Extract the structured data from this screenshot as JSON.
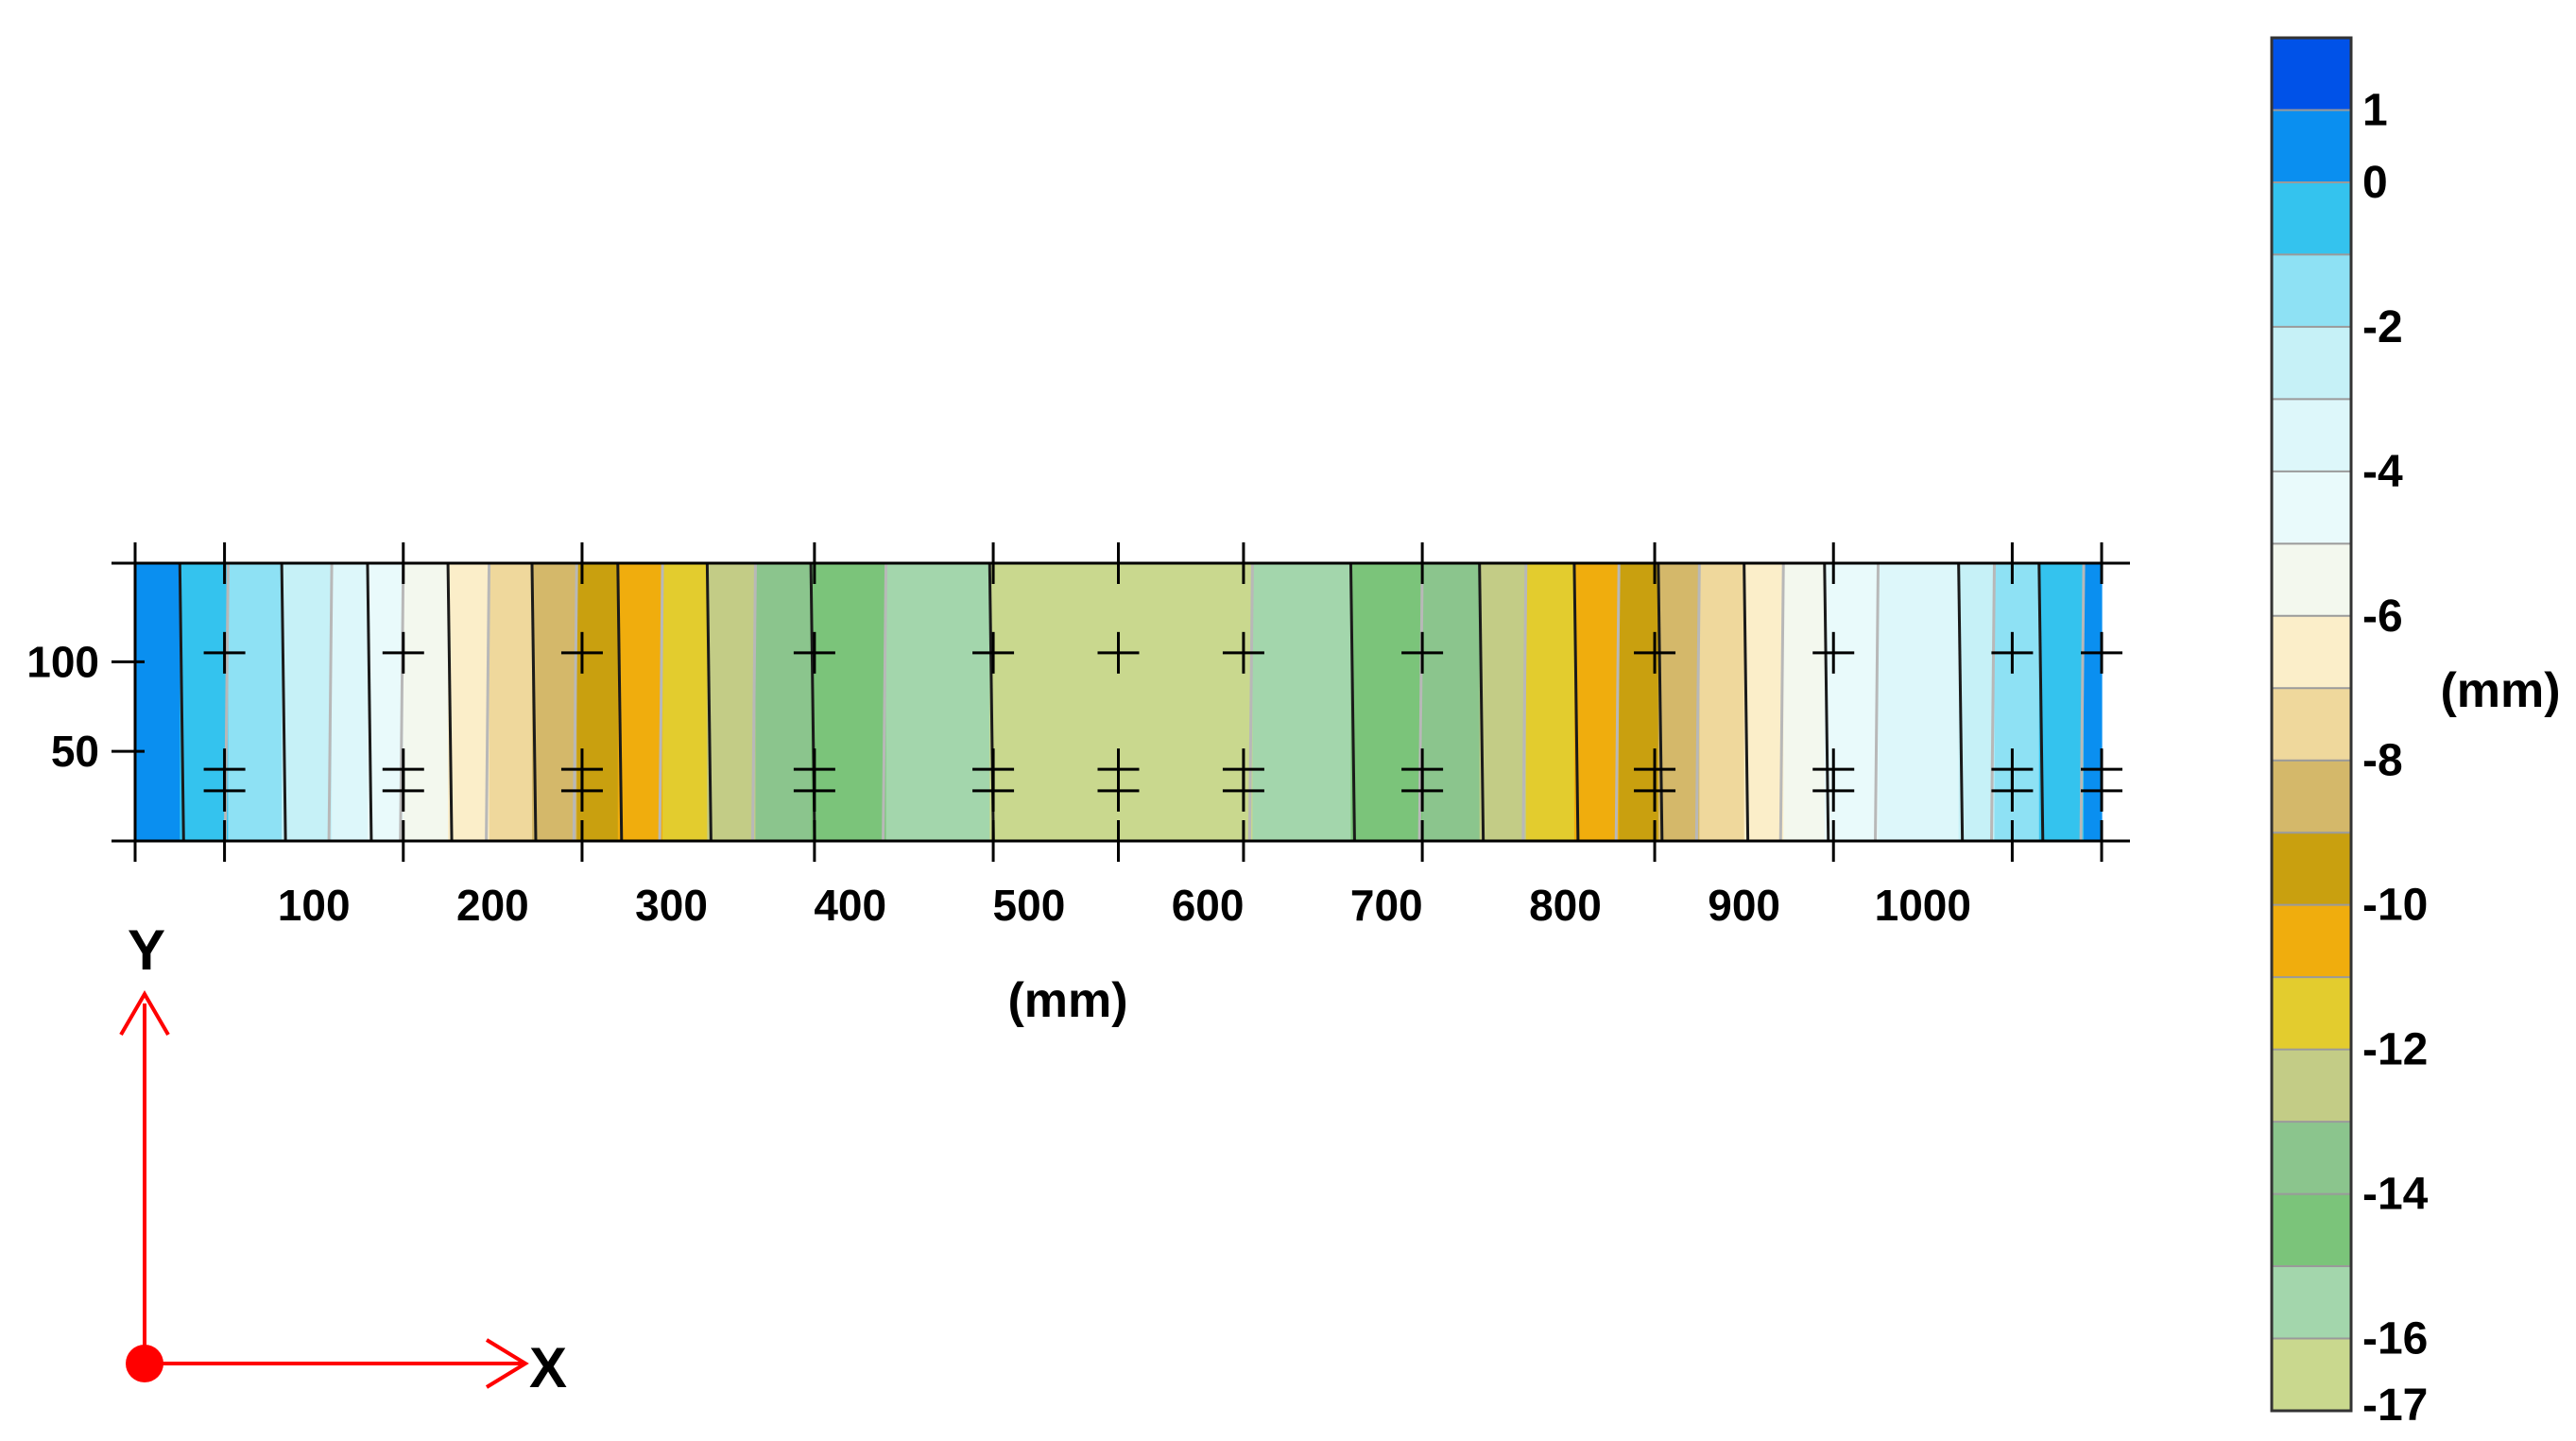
{
  "chart_data": {
    "type": "heatmap",
    "subtype": "filled-contour",
    "xlabel": "(mm)",
    "xlim": [
      0,
      1100
    ],
    "ylim": [
      0,
      155
    ],
    "x_ticks": [
      100,
      200,
      300,
      400,
      500,
      600,
      700,
      800,
      900,
      1000
    ],
    "y_ticks": [
      50,
      100
    ],
    "x_tick_labels": [
      "100",
      "200",
      "300",
      "400",
      "500",
      "600",
      "700",
      "800",
      "900",
      "1000"
    ],
    "y_tick_labels": [
      "50",
      "100"
    ],
    "colorbar": {
      "unit_label": "(mm)",
      "levels": [
        2,
        1,
        0,
        -1,
        -2,
        -3,
        -4,
        -5,
        -6,
        -7,
        -8,
        -9,
        -10,
        -11,
        -12,
        -13,
        -14,
        -15,
        -16,
        -17
      ],
      "labeled_levels": [
        {
          "value": 1,
          "text": "1"
        },
        {
          "value": 0,
          "text": "0"
        },
        {
          "value": -2,
          "text": "-2"
        },
        {
          "value": -4,
          "text": "-4"
        },
        {
          "value": -6,
          "text": "-6"
        },
        {
          "value": -8,
          "text": "-8"
        },
        {
          "value": -10,
          "text": "-10"
        },
        {
          "value": -12,
          "text": "-12"
        },
        {
          "value": -14,
          "text": "-14"
        },
        {
          "value": -16,
          "text": "-16"
        },
        {
          "value": -17,
          "text": "-17"
        }
      ],
      "colors": [
        "#0052e8",
        "#0a8ff0",
        "#34c3ee",
        "#8ee1f4",
        "#c6f1f7",
        "#ddf7fa",
        "#e9fafb",
        "#f3f8ee",
        "#fbeec9",
        "#efd89c",
        "#d4b86a",
        "#c9a00f",
        "#f0ad0d",
        "#e3cc2e",
        "#c3cc86",
        "#8bc58d",
        "#7bc47a",
        "#a3d6ac",
        "#c9d88e"
      ]
    },
    "contour_bands": [
      {
        "x0": 0,
        "x1": 25,
        "value": 0.5
      },
      {
        "x0": 25,
        "x1": 52,
        "value": -0.5
      },
      {
        "x0": 52,
        "x1": 82,
        "value": -1.5
      },
      {
        "x0": 82,
        "x1": 110,
        "value": -2.5
      },
      {
        "x0": 110,
        "x1": 130,
        "value": -3.5
      },
      {
        "x0": 130,
        "x1": 150,
        "value": -4.5
      },
      {
        "x0": 150,
        "x1": 175,
        "value": -5.5
      },
      {
        "x0": 175,
        "x1": 198,
        "value": -6.5
      },
      {
        "x0": 198,
        "x1": 222,
        "value": -7.5
      },
      {
        "x0": 222,
        "x1": 247,
        "value": -8.5
      },
      {
        "x0": 247,
        "x1": 270,
        "value": -9.5
      },
      {
        "x0": 270,
        "x1": 295,
        "value": -10.5
      },
      {
        "x0": 295,
        "x1": 320,
        "value": -11.5
      },
      {
        "x0": 320,
        "x1": 347,
        "value": -12.5
      },
      {
        "x0": 347,
        "x1": 378,
        "value": -13.5
      },
      {
        "x0": 378,
        "x1": 420,
        "value": -14.5
      },
      {
        "x0": 420,
        "x1": 478,
        "value": -15.5
      },
      {
        "x0": 478,
        "x1": 625,
        "value": -16.5
      },
      {
        "x0": 625,
        "x1": 680,
        "value": -15.5
      },
      {
        "x0": 680,
        "x1": 720,
        "value": -14.5
      },
      {
        "x0": 720,
        "x1": 752,
        "value": -13.5
      },
      {
        "x0": 752,
        "x1": 778,
        "value": -12.5
      },
      {
        "x0": 778,
        "x1": 805,
        "value": -11.5
      },
      {
        "x0": 805,
        "x1": 830,
        "value": -10.5
      },
      {
        "x0": 830,
        "x1": 852,
        "value": -9.5
      },
      {
        "x0": 852,
        "x1": 875,
        "value": -8.5
      },
      {
        "x0": 875,
        "x1": 900,
        "value": -7.5
      },
      {
        "x0": 900,
        "x1": 922,
        "value": -6.5
      },
      {
        "x0": 922,
        "x1": 945,
        "value": -5.5
      },
      {
        "x0": 945,
        "x1": 975,
        "value": -4.5
      },
      {
        "x0": 975,
        "x1": 1020,
        "value": -3.5
      },
      {
        "x0": 1020,
        "x1": 1040,
        "value": -2.5
      },
      {
        "x0": 1040,
        "x1": 1065,
        "value": -1.5
      },
      {
        "x0": 1065,
        "x1": 1090,
        "value": -0.5
      },
      {
        "x0": 1090,
        "x1": 1100,
        "value": 0.5
      }
    ],
    "measurement_points": [
      {
        "x": 50,
        "y": 105
      },
      {
        "x": 50,
        "y": 40
      },
      {
        "x": 50,
        "y": 28
      },
      {
        "x": 150,
        "y": 105
      },
      {
        "x": 150,
        "y": 40
      },
      {
        "x": 150,
        "y": 28
      },
      {
        "x": 250,
        "y": 105
      },
      {
        "x": 250,
        "y": 40
      },
      {
        "x": 250,
        "y": 28
      },
      {
        "x": 380,
        "y": 105
      },
      {
        "x": 380,
        "y": 40
      },
      {
        "x": 380,
        "y": 28
      },
      {
        "x": 480,
        "y": 105
      },
      {
        "x": 480,
        "y": 40
      },
      {
        "x": 480,
        "y": 28
      },
      {
        "x": 550,
        "y": 105
      },
      {
        "x": 550,
        "y": 40
      },
      {
        "x": 550,
        "y": 28
      },
      {
        "x": 620,
        "y": 105
      },
      {
        "x": 620,
        "y": 40
      },
      {
        "x": 620,
        "y": 28
      },
      {
        "x": 720,
        "y": 105
      },
      {
        "x": 720,
        "y": 40
      },
      {
        "x": 720,
        "y": 28
      },
      {
        "x": 850,
        "y": 105
      },
      {
        "x": 850,
        "y": 40
      },
      {
        "x": 850,
        "y": 28
      },
      {
        "x": 950,
        "y": 105
      },
      {
        "x": 950,
        "y": 40
      },
      {
        "x": 950,
        "y": 28
      },
      {
        "x": 1050,
        "y": 105
      },
      {
        "x": 1050,
        "y": 40
      },
      {
        "x": 1050,
        "y": 28
      },
      {
        "x": 1100,
        "y": 105
      },
      {
        "x": 1100,
        "y": 40
      },
      {
        "x": 1100,
        "y": 28
      }
    ],
    "coordinate_system": {
      "x_axis_label": "X",
      "y_axis_label": "Y",
      "axis_color": "#ff0000"
    }
  }
}
